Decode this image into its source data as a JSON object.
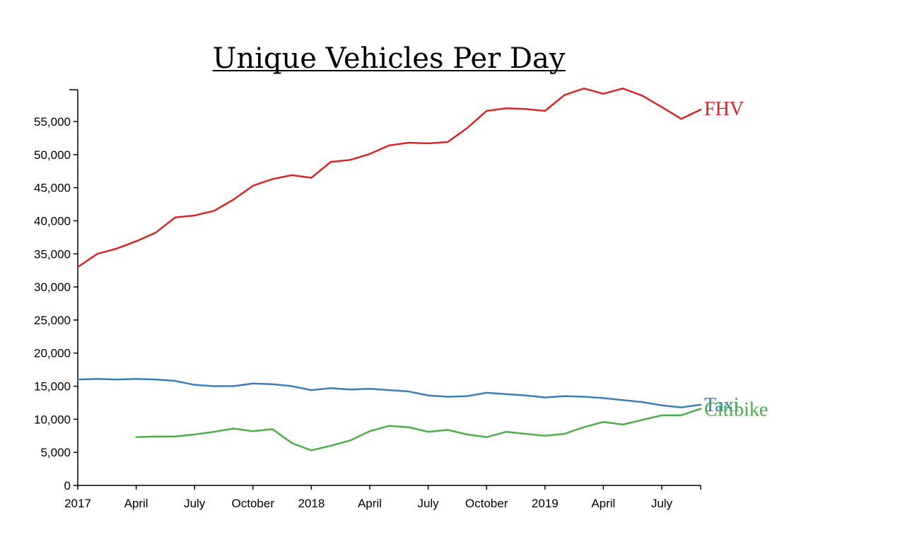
{
  "chart_data": {
    "type": "line",
    "title": "Unique Vehicles Per Day",
    "xlabel": "",
    "ylabel": "",
    "ylim": [
      0,
      60000
    ],
    "grid": false,
    "legend": "inline-end-labels",
    "x": [
      "2017-01",
      "2017-02",
      "2017-03",
      "2017-04",
      "2017-05",
      "2017-06",
      "2017-07",
      "2017-08",
      "2017-09",
      "2017-10",
      "2017-11",
      "2017-12",
      "2018-01",
      "2018-02",
      "2018-03",
      "2018-04",
      "2018-05",
      "2018-06",
      "2018-07",
      "2018-08",
      "2018-09",
      "2018-10",
      "2018-11",
      "2018-12",
      "2019-01",
      "2019-02",
      "2019-03",
      "2019-04",
      "2019-05",
      "2019-06",
      "2019-07",
      "2019-08",
      "2019-09"
    ],
    "x_ticks": [
      {
        "date": "2017-01",
        "label": "2017"
      },
      {
        "date": "2017-04",
        "label": "April"
      },
      {
        "date": "2017-07",
        "label": "July"
      },
      {
        "date": "2017-10",
        "label": "October"
      },
      {
        "date": "2018-01",
        "label": "2018"
      },
      {
        "date": "2018-04",
        "label": "April"
      },
      {
        "date": "2018-07",
        "label": "July"
      },
      {
        "date": "2018-10",
        "label": "October"
      },
      {
        "date": "2019-01",
        "label": "2019"
      },
      {
        "date": "2019-04",
        "label": "April"
      },
      {
        "date": "2019-07",
        "label": "July"
      }
    ],
    "y_ticks": [
      0,
      5000,
      10000,
      15000,
      20000,
      25000,
      30000,
      35000,
      40000,
      45000,
      50000,
      55000
    ],
    "series": [
      {
        "name": "FHV",
        "color": "#d62728",
        "values": [
          33000,
          35000,
          35800,
          36900,
          38200,
          40500,
          40800,
          41500,
          43200,
          45300,
          46300,
          46900,
          46500,
          48900,
          49200,
          50100,
          51400,
          51800,
          51700,
          51900,
          54000,
          56600,
          57000,
          56900,
          56600,
          59000,
          60000,
          59200,
          60000,
          58900,
          57200,
          55400,
          56800
        ]
      },
      {
        "name": "Taxi",
        "color": "#3b7fb8",
        "values": [
          16000,
          16100,
          16000,
          16100,
          16000,
          15800,
          15200,
          15000,
          15000,
          15400,
          15300,
          15000,
          14400,
          14700,
          14500,
          14600,
          14400,
          14200,
          13600,
          13400,
          13500,
          14000,
          13800,
          13600,
          13300,
          13500,
          13400,
          13200,
          12900,
          12600,
          12100,
          11800,
          12200
        ]
      },
      {
        "name": "Citibike",
        "color": "#4daf4a",
        "values": [
          null,
          null,
          null,
          7300,
          7400,
          7400,
          7700,
          8100,
          8600,
          8200,
          8500,
          6400,
          5300,
          6000,
          6800,
          8200,
          9000,
          8800,
          8100,
          8400,
          7700,
          7300,
          8100,
          7800,
          7500,
          7800,
          8800,
          9600,
          9200,
          9900,
          10600,
          10600,
          11600
        ]
      }
    ]
  }
}
